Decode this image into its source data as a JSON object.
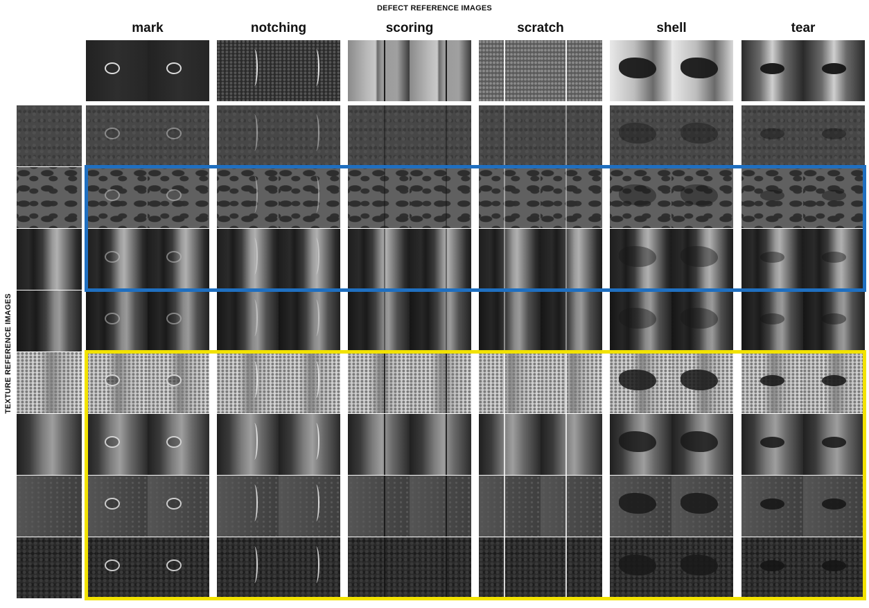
{
  "titles": {
    "defect": "DEFECT REFERENCE IMAGES",
    "texture": "TEXTURE REFERENCE IMAGES"
  },
  "defects": [
    {
      "label": "mark"
    },
    {
      "label": "notching"
    },
    {
      "label": "scoring"
    },
    {
      "label": "scratch"
    },
    {
      "label": "shell"
    },
    {
      "label": "tear"
    }
  ],
  "textures": [
    {
      "id": "t1",
      "style": "uniform-dark"
    },
    {
      "id": "t2",
      "style": "mottled"
    },
    {
      "id": "t3",
      "style": "banded"
    },
    {
      "id": "t4",
      "style": "banded-dark"
    },
    {
      "id": "t5",
      "style": "bright-speckled"
    },
    {
      "id": "t6",
      "style": "banded-mid"
    },
    {
      "id": "t7",
      "style": "smooth-gray"
    },
    {
      "id": "t8",
      "style": "dark-rough"
    }
  ],
  "highlights": [
    {
      "name": "blue-box",
      "color": "#1f6fc0",
      "rows": [
        2,
        3
      ]
    },
    {
      "name": "yellow-box",
      "color": "#f2e200",
      "rows": [
        5,
        8
      ]
    }
  ]
}
